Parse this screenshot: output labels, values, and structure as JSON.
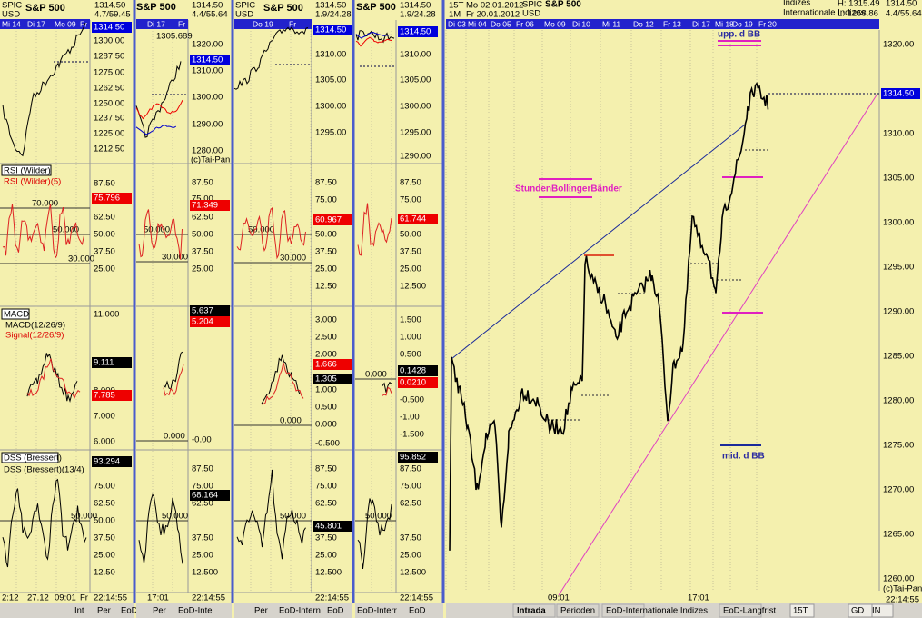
{
  "columns": [
    {
      "symbol": "SPIC",
      "currency": "USD",
      "name": "S&P 500",
      "last": "1314.50",
      "change": "4.7/59.45",
      "days": [
        "Mi 14",
        "Di 17",
        "Mo 09",
        "Fr"
      ],
      "price_box": "1314.50",
      "price_ticks": [
        "1300.00",
        "1287.50",
        "1275.00",
        "1262.50",
        "1250.00",
        "1237.50",
        "1225.00",
        "1212.50"
      ],
      "rsi_title": "RSI (Wilder)",
      "rsi_legend": "RSI (Wilder)(5)",
      "rsi_box": "75.796",
      "rsi_ticks": [
        "87.50",
        "75.00",
        "62.50",
        "50.00",
        "37.50",
        "25.00"
      ],
      "rsi_levels": [
        "70.000",
        "50.000",
        "30.000"
      ],
      "macd_title": "MACD",
      "macd_legend": "MACD(12/26/9)",
      "signal_legend": "Signal(12/26/9)",
      "macd_boxes": [
        "9.111",
        "7.785"
      ],
      "macd_ticks": [
        "11.000",
        "8.000",
        "7.000",
        "6.000"
      ],
      "dss_title": "DSS (Bressert)",
      "dss_legend": "DSS (Bressert)(13/4)",
      "dss_box": "93.294",
      "dss_ticks": [
        "75.00",
        "62.50",
        "50.00",
        "37.50",
        "25.00",
        "12.50"
      ],
      "dss_levels": [
        "50.000"
      ],
      "time_labels": [
        "2:12",
        "27.12",
        "09:01",
        "Fr"
      ],
      "clock": "22:14:55",
      "tabs": [
        "Int",
        "Per",
        "EoD"
      ]
    },
    {
      "name": "S&P 500",
      "last": "1314.50",
      "change": "4.4/55.64",
      "days": [
        "Di 17",
        "Fr"
      ],
      "extra": "1305.689",
      "price_box": "1314.50",
      "price_ticks": [
        "1320.00",
        "1310.00",
        "1300.00",
        "1290.00",
        "1280.00"
      ],
      "copyright": "(c)Tai-Pan",
      "rsi_box": "71.349",
      "rsi_ticks": [
        "87.50",
        "75.00",
        "62.50",
        "50.00",
        "37.50",
        "25.00"
      ],
      "rsi_levels": [
        "50.000",
        "30.000"
      ],
      "macd_boxes": [
        "5.637",
        "5.204"
      ],
      "macd_ticks": [
        "-0.00"
      ],
      "macd_levels": [
        "0.000"
      ],
      "dss_box": "68.164",
      "dss_ticks": [
        "87.50",
        "75.00",
        "62.50",
        "37.50",
        "25.00",
        "12.500"
      ],
      "dss_levels": [
        "50.000"
      ],
      "time_labels": [
        "17:01"
      ],
      "clock": "22:14:55",
      "tabs": [
        "Per",
        "EoD-Inte"
      ]
    },
    {
      "symbol": "SPIC",
      "currency": "USD",
      "name": "S&P 500",
      "last": "1314.50",
      "change": "1.9/24.28",
      "days": [
        "Do 19",
        "Fr"
      ],
      "price_box": "1314.50",
      "price_ticks": [
        "1310.00",
        "1305.00",
        "1300.00",
        "1295.00"
      ],
      "rsi_box": "60.967",
      "rsi_ticks": [
        "87.50",
        "75.00",
        "50.00",
        "37.50",
        "25.00",
        "12.50"
      ],
      "rsi_levels": [
        "50.000",
        "30.000"
      ],
      "macd_boxes": [
        "1.666",
        "1.305"
      ],
      "macd_ticks": [
        "3.000",
        "2.500",
        "2.000",
        "1.000",
        "0.500",
        "0.000",
        "-0.500"
      ],
      "macd_levels": [
        "0.000"
      ],
      "dss_box": "45.801",
      "dss_ticks": [
        "87.50",
        "75.00",
        "62.50",
        "37.50",
        "25.00",
        "12.500"
      ],
      "dss_levels": [
        "50.000"
      ],
      "clock": "22:14:55",
      "tabs": [
        "Per",
        "EoD-Intern",
        "EoD"
      ]
    },
    {
      "name": "S&P 500",
      "last": "1314.50",
      "change": "1.9/24.28",
      "price_box": "1314.50",
      "price_ticks": [
        "1310.00",
        "1305.00",
        "1300.00",
        "1295.00",
        "1290.00"
      ],
      "rsi_box": "61.744",
      "rsi_ticks": [
        "87.50",
        "75.00",
        "50.00",
        "37.50",
        "25.00",
        "12.500"
      ],
      "macd_boxes": [
        "0.1428",
        "0.0210"
      ],
      "macd_ticks": [
        "1.500",
        "1.000",
        "0.500",
        "-0.500",
        "-1.00",
        "-1.500"
      ],
      "macd_levels": [
        "0.000"
      ],
      "dss_box": "95.852",
      "dss_ticks": [
        "87.50",
        "75.00",
        "62.50",
        "37.50",
        "25.00",
        "12.500"
      ],
      "dss_levels": [
        "50.000"
      ],
      "clock": "22:14:55",
      "tabs": [
        "EoD-Interr",
        "EoD"
      ]
    }
  ],
  "main": {
    "interval": "15T",
    "range": "1M",
    "from": "Mo 02.01.2012",
    "to": "Fr 20.01.2012",
    "symbol": "SPIC",
    "currency": "USD",
    "name": "S&P 500",
    "group": "Indizes",
    "market": "Internationale Indizes",
    "high": "H: 1315.49",
    "low": "L: 1258.86",
    "last": "1314.50",
    "change": "4.4/55.64",
    "days": [
      "Di 03",
      "Mi 04",
      "Do 05",
      "Fr 06",
      "Mo 09",
      "Di 10",
      "Mi 11",
      "Do 12",
      "Fr 13",
      "Di 17",
      "Mi 18",
      "Do 19",
      "Fr 20"
    ],
    "price_box": "1314.50",
    "price_ticks": [
      "1320.00",
      "1310.00",
      "1305.00",
      "1300.00",
      "1295.00",
      "1290.00",
      "1285.00",
      "1280.00",
      "1275.00",
      "1270.00",
      "1265.00",
      "1260.00"
    ],
    "annotations": [
      "upp. d BB",
      "StundenBollingerBänder",
      "mid. d BB"
    ],
    "time_labels": [
      "09:01",
      "17:01"
    ],
    "copyright": "(c)Tai-Pan",
    "clock": "22:14:55",
    "tabs": [
      "Intrada",
      "Perioden",
      "EoD-Internationale Indizes",
      "EoD-Langfrist"
    ],
    "status": [
      "15T",
      "IN",
      "GD"
    ]
  }
}
